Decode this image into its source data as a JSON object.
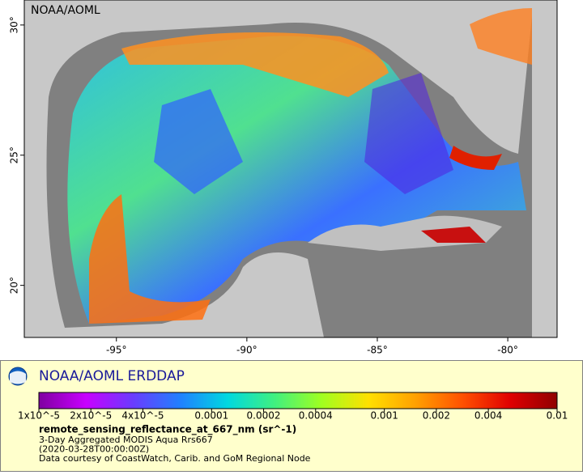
{
  "map": {
    "watermark": "NOAA/AOML",
    "xlim": [
      -98.53,
      -78.11
    ],
    "ylim": [
      18.0,
      30.96
    ],
    "xticks": [
      {
        "value": -95,
        "label": "-95°"
      },
      {
        "value": -90,
        "label": "-90°"
      },
      {
        "value": -85,
        "label": "-85°"
      },
      {
        "value": -80,
        "label": "-80°"
      }
    ],
    "yticks": [
      {
        "value": 20,
        "label": "20°"
      },
      {
        "value": 25,
        "label": "25°"
      },
      {
        "value": 30,
        "label": "30°"
      }
    ]
  },
  "legend": {
    "title": "NOAA/AOML ERDDAP",
    "colorbar": {
      "log_scale": true,
      "lim": [
        1e-05,
        0.01
      ],
      "colors": [
        "#7f00a0",
        "#c800ff",
        "#6a3cff",
        "#2080ff",
        "#00d8e0",
        "#40f080",
        "#a0ff20",
        "#ffe000",
        "#ffa000",
        "#ff5000",
        "#e00000",
        "#900000"
      ],
      "ticks": [
        {
          "value": 1e-05,
          "label": "1x10^-5"
        },
        {
          "value": 2e-05,
          "label": "2x10^-5"
        },
        {
          "value": 4e-05,
          "label": "4x10^-5"
        },
        0.0001,
        0.0002,
        0.0004,
        0.001,
        0.002,
        0.004,
        0.01
      ]
    },
    "variable": "remote_sensing_reflectance_at_667_nm (sr^-1)",
    "lines": [
      "3-Day Aggregated MODIS Aqua Rrs667",
      "(2020-03-28T00:00:00Z)",
      "Data courtesy of CoastWatch, Carib. and GoM Regional Node"
    ]
  }
}
